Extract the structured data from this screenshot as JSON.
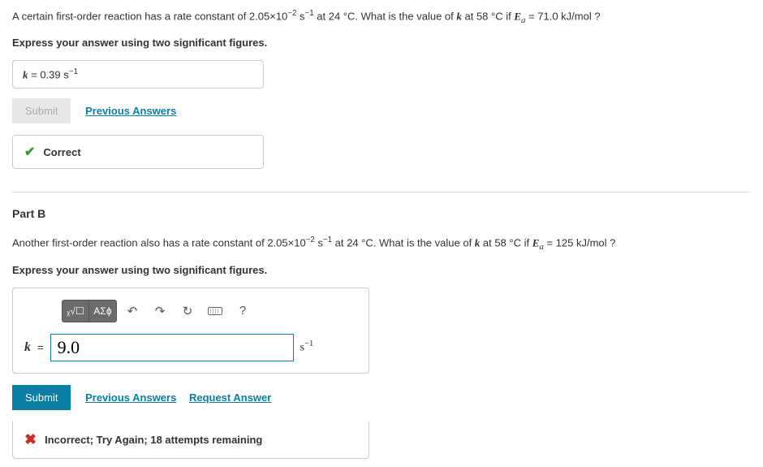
{
  "partA": {
    "question_prefix": "A certain first-order reaction has a rate constant of 2.05×10",
    "question_exp1": "−2",
    "question_mid1": " s",
    "question_exp2": "−1",
    "question_mid2": " at 24 °C. What is the value of ",
    "question_var_k": "k",
    "question_mid3": " at 58 °C if ",
    "question_var_Ea": "E",
    "question_var_Ea_sub": "a",
    "question_suffix": " = 71.0 kJ/mol ?",
    "instruction": "Express your answer using two significant figures.",
    "answer_var": "k",
    "answer_eq": " = ",
    "answer_value": " 0.39 ",
    "answer_unit_base": "s",
    "answer_unit_exp": "−1",
    "submit_label": "Submit",
    "prev_answers_label": "Previous Answers",
    "correct_label": "Correct"
  },
  "partB": {
    "header": "Part B",
    "question_prefix": "Another first-order reaction also has a rate constant of 2.05×10",
    "question_exp1": "−2",
    "question_mid1": " s",
    "question_exp2": "−1",
    "question_mid2": " at 24 °C. What is the value of ",
    "question_var_k": "k",
    "question_mid3": " at 58 °C if ",
    "question_var_Ea": "E",
    "question_var_Ea_sub": "a",
    "question_suffix": " = 125 kJ/mol ?",
    "instruction": "Express your answer using two significant figures.",
    "tool_root": "ᵪ√☐",
    "tool_greek": "AΣϕ",
    "tool_undo": "↶",
    "tool_redo": "↷",
    "tool_reset": "↻",
    "tool_help": "?",
    "answer_var": "k",
    "answer_eq": " = ",
    "input_value": "9.0",
    "unit_base": "s",
    "unit_exp": "−1",
    "submit_label": "Submit",
    "prev_answers_label": "Previous Answers",
    "request_answer_label": "Request Answer",
    "incorrect_label": "Incorrect; Try Again; 18 attempts remaining"
  },
  "colors": {
    "link": "#0b7ea5",
    "correct": "#2a9d2a",
    "incorrect": "#cc2b2b",
    "toolbar_dark": "#6b6b6b"
  }
}
